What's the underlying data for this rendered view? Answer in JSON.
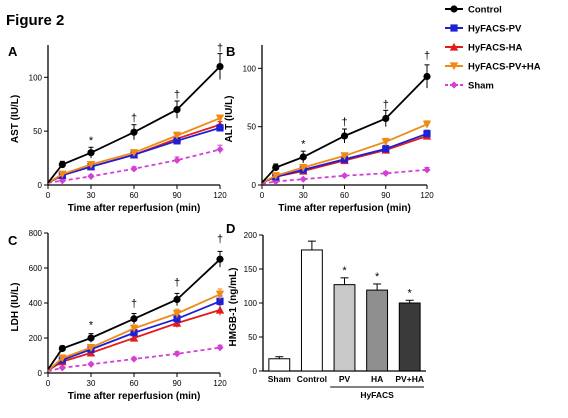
{
  "figure_title": "Figure 2",
  "colors": {
    "Control": "#000000",
    "HyFACS-PV": "#1f1fd6",
    "HyFACS-HA": "#e21b1b",
    "HyFACS-PV+HA": "#ef8a17",
    "Sham": "#d43fd6"
  },
  "legend": [
    {
      "name": "Control",
      "marker": "circle"
    },
    {
      "name": "HyFACS-PV",
      "marker": "square"
    },
    {
      "name": "HyFACS-HA",
      "marker": "triangle"
    },
    {
      "name": "HyFACS-PV+HA",
      "marker": "triangle-down"
    },
    {
      "name": "Sham",
      "marker": "diamond"
    }
  ],
  "chart_data": [
    {
      "panel": "A",
      "type": "line",
      "xlabel": "Time after reperfusion (min)",
      "ylabel": "AST (IU/L)",
      "xlim": [
        0,
        120
      ],
      "ylim": [
        0,
        130
      ],
      "xticks": [
        0,
        30,
        60,
        90,
        120
      ],
      "yticks": [
        0,
        50,
        100
      ],
      "x": [
        0,
        10,
        30,
        60,
        90,
        120
      ],
      "series": [
        {
          "name": "Control",
          "values": [
            2,
            19,
            30,
            49,
            70,
            110
          ],
          "err": [
            1,
            3,
            5,
            7,
            8,
            12
          ]
        },
        {
          "name": "HyFACS-PV",
          "values": [
            2,
            9,
            17,
            28,
            41,
            53
          ],
          "err": [
            1,
            1.5,
            2,
            2,
            3,
            3
          ]
        },
        {
          "name": "HyFACS-HA",
          "values": [
            2,
            9,
            17,
            28,
            43,
            56
          ],
          "err": [
            1,
            1.5,
            2,
            2,
            3,
            3
          ]
        },
        {
          "name": "HyFACS-PV+HA",
          "values": [
            2,
            10,
            19,
            30,
            46,
            62
          ],
          "err": [
            1,
            1.5,
            2,
            2,
            3,
            3
          ]
        },
        {
          "name": "Sham",
          "values": [
            2,
            4,
            8,
            15,
            23,
            33
          ],
          "err": [
            1,
            1,
            1.5,
            2,
            3,
            4
          ]
        }
      ],
      "annotations": [
        {
          "x": 30,
          "y": 38,
          "text": "*"
        },
        {
          "x": 60,
          "y": 59,
          "text": "†"
        },
        {
          "x": 90,
          "y": 81,
          "text": "†"
        },
        {
          "x": 120,
          "y": 124,
          "text": "†"
        }
      ]
    },
    {
      "panel": "B",
      "type": "line",
      "xlabel": "Time after reperfusion (min)",
      "ylabel": "ALT (IU/L)",
      "xlim": [
        0,
        120
      ],
      "ylim": [
        0,
        120
      ],
      "xticks": [
        0,
        30,
        60,
        90,
        120
      ],
      "yticks": [
        0,
        50,
        100
      ],
      "x": [
        0,
        10,
        30,
        60,
        90,
        120
      ],
      "series": [
        {
          "name": "Control",
          "values": [
            2,
            15,
            24,
            42,
            57,
            93
          ],
          "err": [
            1,
            3,
            5,
            6,
            7,
            10
          ]
        },
        {
          "name": "HyFACS-PV",
          "values": [
            2,
            7,
            13,
            22,
            31,
            44
          ],
          "err": [
            1,
            1.5,
            2,
            2,
            3,
            3
          ]
        },
        {
          "name": "HyFACS-HA",
          "values": [
            2,
            7,
            12,
            21,
            30,
            42
          ],
          "err": [
            1,
            1.5,
            2,
            2,
            3,
            3
          ]
        },
        {
          "name": "HyFACS-PV+HA",
          "values": [
            2,
            8,
            15,
            25,
            37,
            52
          ],
          "err": [
            1,
            1.5,
            2,
            2,
            3,
            3
          ]
        },
        {
          "name": "Sham",
          "values": [
            1,
            3,
            5,
            8,
            10,
            13
          ],
          "err": [
            0.5,
            1,
            1,
            1,
            1.5,
            2
          ]
        }
      ],
      "annotations": [
        {
          "x": 30,
          "y": 32,
          "text": "*"
        },
        {
          "x": 60,
          "y": 51,
          "text": "†"
        },
        {
          "x": 90,
          "y": 66,
          "text": "†"
        },
        {
          "x": 120,
          "y": 108,
          "text": "†"
        }
      ]
    },
    {
      "panel": "C",
      "type": "line",
      "xlabel": "Time after reperfusion (min)",
      "ylabel": "LDH (IU/L)",
      "xlim": [
        0,
        120
      ],
      "ylim": [
        0,
        800
      ],
      "xticks": [
        0,
        30,
        60,
        90,
        120
      ],
      "yticks": [
        0,
        200,
        400,
        600,
        800
      ],
      "x": [
        0,
        10,
        30,
        60,
        90,
        120
      ],
      "series": [
        {
          "name": "Control",
          "values": [
            20,
            140,
            200,
            310,
            420,
            650
          ],
          "err": [
            8,
            15,
            25,
            30,
            35,
            45
          ]
        },
        {
          "name": "HyFACS-PV",
          "values": [
            15,
            75,
            135,
            230,
            310,
            410
          ],
          "err": [
            6,
            10,
            15,
            20,
            25,
            30
          ]
        },
        {
          "name": "HyFACS-HA",
          "values": [
            15,
            65,
            115,
            200,
            285,
            360
          ],
          "err": [
            6,
            10,
            15,
            20,
            25,
            30
          ]
        },
        {
          "name": "HyFACS-PV+HA",
          "values": [
            15,
            85,
            145,
            255,
            340,
            450
          ],
          "err": [
            6,
            10,
            15,
            20,
            25,
            30
          ]
        },
        {
          "name": "Sham",
          "values": [
            10,
            30,
            50,
            80,
            110,
            145
          ],
          "err": [
            4,
            6,
            8,
            10,
            12,
            14
          ]
        }
      ],
      "annotations": [
        {
          "x": 30,
          "y": 255,
          "text": "*"
        },
        {
          "x": 60,
          "y": 378,
          "text": "†"
        },
        {
          "x": 90,
          "y": 497,
          "text": "†"
        },
        {
          "x": 120,
          "y": 745,
          "text": "†"
        }
      ]
    },
    {
      "panel": "D",
      "type": "bar",
      "ylabel": "HMGB-1  (ng/mL)",
      "ylim": [
        0,
        200
      ],
      "yticks": [
        0,
        50,
        100,
        150,
        200
      ],
      "categories": [
        "Sham",
        "Control",
        "PV",
        "HA",
        "PV+HA"
      ],
      "values": [
        18,
        178,
        127,
        119,
        100
      ],
      "err": [
        3,
        13,
        10,
        9,
        4
      ],
      "fills": [
        "#ffffff",
        "#ffffff",
        "#c8c8c8",
        "#8f8f8f",
        "#3a3a3a"
      ],
      "star_above": [
        false,
        false,
        true,
        true,
        true
      ],
      "group_label": "HyFACS"
    }
  ]
}
